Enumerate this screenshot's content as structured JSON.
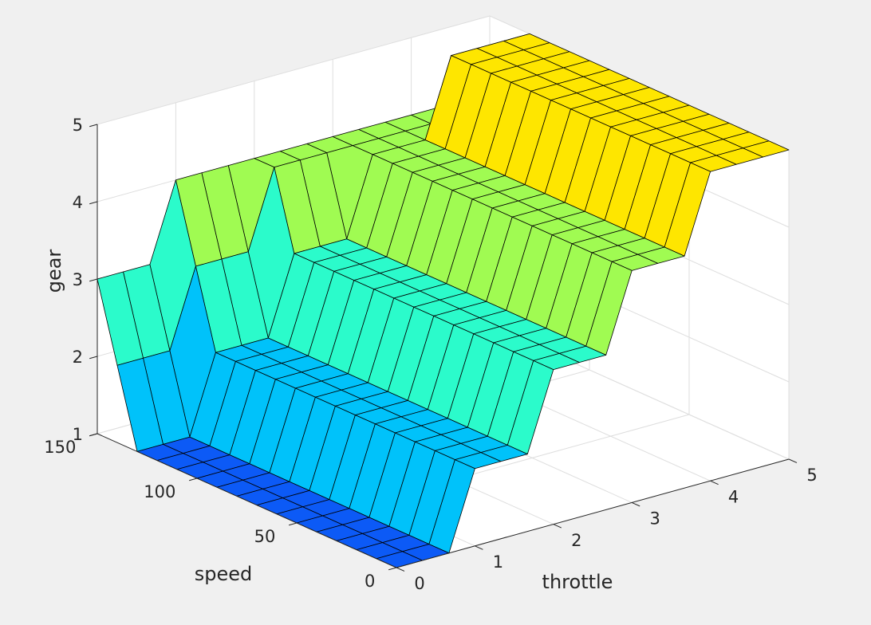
{
  "chart_data": {
    "type": "surface",
    "xlabel": "throttle",
    "ylabel": "speed",
    "zlabel": "gear",
    "xlim": [
      0,
      5
    ],
    "ylim": [
      0,
      150
    ],
    "zlim": [
      1,
      5
    ],
    "x_ticks": [
      "0",
      "1",
      "2",
      "3",
      "4",
      "5"
    ],
    "y_ticks": [
      "0",
      "50",
      "100",
      "150"
    ],
    "z_ticks": [
      "1",
      "2",
      "3",
      "4",
      "5"
    ],
    "grid": true,
    "colormap": [
      "#0c5af6",
      "#00c2fa",
      "#2bfbcb",
      "#a0fb52",
      "#fee600"
    ],
    "throttle_grid": [
      0,
      0.33,
      0.67,
      1.0,
      1.33,
      1.67,
      2.0,
      2.33,
      2.67,
      3.0,
      3.33,
      3.67,
      4.0,
      4.33,
      4.67,
      5.0
    ],
    "speed_grid": [
      0,
      10,
      20,
      30,
      40,
      50,
      60,
      70,
      80,
      90,
      100,
      110,
      120,
      130,
      140,
      150
    ],
    "gear": [
      [
        1,
        1,
        1,
        2,
        2,
        2,
        3,
        3,
        3,
        4,
        4,
        4,
        5,
        5,
        5,
        5
      ],
      [
        1,
        1,
        1,
        2,
        2,
        2,
        3,
        3,
        3,
        4,
        4,
        4,
        5,
        5,
        5,
        5
      ],
      [
        1,
        1,
        1,
        2,
        2,
        2,
        3,
        3,
        3,
        4,
        4,
        4,
        5,
        5,
        5,
        5
      ],
      [
        1,
        1,
        1,
        2,
        2,
        2,
        3,
        3,
        3,
        4,
        4,
        4,
        5,
        5,
        5,
        5
      ],
      [
        1,
        1,
        1,
        2,
        2,
        2,
        3,
        3,
        3,
        4,
        4,
        4,
        5,
        5,
        5,
        5
      ],
      [
        1,
        1,
        1,
        2,
        2,
        2,
        3,
        3,
        3,
        4,
        4,
        4,
        5,
        5,
        5,
        5
      ],
      [
        1,
        1,
        1,
        2,
        2,
        2,
        3,
        3,
        3,
        4,
        4,
        4,
        5,
        5,
        5,
        5
      ],
      [
        1,
        1,
        1,
        2,
        2,
        2,
        3,
        3,
        3,
        4,
        4,
        4,
        5,
        5,
        5,
        5
      ],
      [
        1,
        1,
        1,
        2,
        2,
        2,
        3,
        3,
        3,
        4,
        4,
        4,
        5,
        5,
        5,
        5
      ],
      [
        1,
        1,
        1,
        2,
        2,
        2,
        3,
        3,
        3,
        4,
        4,
        4,
        5,
        5,
        5,
        5
      ],
      [
        1,
        1,
        1,
        2,
        2,
        2,
        3,
        3,
        3,
        4,
        4,
        4,
        5,
        5,
        5,
        5
      ],
      [
        1,
        1,
        1,
        2,
        2,
        2,
        3,
        3,
        3,
        4,
        4,
        4,
        5,
        5,
        5,
        5
      ],
      [
        1,
        1,
        1,
        2,
        2,
        2,
        3,
        3,
        3,
        4,
        4,
        4,
        5,
        5,
        5,
        5
      ],
      [
        1,
        1,
        1,
        2,
        2,
        2,
        3,
        3,
        3,
        4,
        4,
        4,
        5,
        5,
        5,
        5
      ],
      [
        2,
        2,
        2,
        3,
        3,
        3,
        4,
        4,
        4,
        4,
        4,
        4,
        4,
        4,
        4,
        4
      ],
      [
        3,
        3,
        3,
        4,
        4,
        4,
        4,
        4,
        4,
        4,
        4,
        4,
        4,
        4,
        4,
        4
      ]
    ]
  }
}
